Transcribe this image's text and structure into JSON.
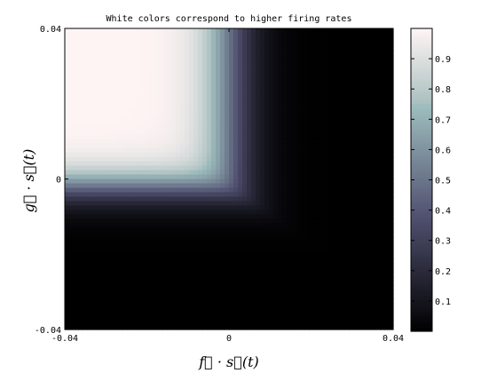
{
  "chart_data": {
    "type": "heatmap",
    "title": "White colors correspond to higher firing rates",
    "xlabel": "f⃗ · s⃗(t)",
    "ylabel": "g⃗ · s⃗(t)",
    "xlim": [
      -0.04,
      0.04
    ],
    "ylim": [
      -0.04,
      0.04
    ],
    "x_ticks": [
      -0.04,
      0,
      0.04
    ],
    "x_tick_labels": [
      "-0.04",
      "0",
      "0.04"
    ],
    "y_ticks": [
      -0.04,
      0,
      0.04
    ],
    "y_tick_labels": [
      "-0.04",
      "0",
      "0.04"
    ],
    "colorbar": {
      "range": [
        0,
        1
      ],
      "ticks": [
        0.1,
        0.2,
        0.3,
        0.4,
        0.5,
        0.6,
        0.7,
        0.8,
        0.9
      ],
      "tick_labels": [
        "0.1",
        "0.2",
        "0.3",
        "0.4",
        "0.5",
        "0.6",
        "0.7",
        "0.8",
        "0.9"
      ],
      "colormap": "bone"
    },
    "surface": {
      "description_model": "softplus-combined threshold",
      "x_threshold": 0.0,
      "y_threshold": -0.002,
      "x_scale": 0.004,
      "y_scale": 0.003,
      "corner_sharpness": 4,
      "plateau": 1.0
    },
    "grid": false
  }
}
